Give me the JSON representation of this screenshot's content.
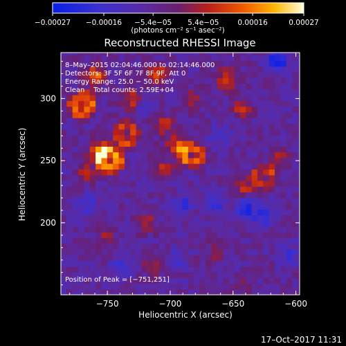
{
  "chart_data": {
    "type": "heatmap",
    "title": "Reconstructed RHESSI Image",
    "xlabel": "Heliocentric X (arcsec)",
    "ylabel": "Heliocentric Y (arcsec)",
    "xlim": [
      -787,
      -597
    ],
    "ylim": [
      142,
      337
    ],
    "x_ticks": [
      -750,
      -700,
      -650,
      -600
    ],
    "x_tick_labels": [
      "−750",
      "−700",
      "−650",
      "−600"
    ],
    "y_ticks": [
      200,
      250,
      300
    ],
    "y_tick_labels": [
      "200",
      "250",
      "300"
    ],
    "colorbar": {
      "tick_values": [
        -0.00027,
        -0.00016,
        -5.4e-05,
        5.4e-05,
        0.00016,
        0.00027
      ],
      "tick_labels": [
        "−0.00027",
        "−0.00016",
        "−5.4e−05",
        "5.4e−05",
        "0.00016",
        "0.00027"
      ],
      "unit_label": "(photons cm⁻² s⁻¹ asec⁻²)",
      "range": [
        -0.00027,
        0.00027
      ]
    },
    "annotations": {
      "time": "8–May–2015 02:04:46.000 to 02:14:46.000",
      "detectors": "Detectors: 3F 5F 6F 7F 8F 9F, Att 0",
      "energy": "Energy Range: 25.0 − 50.0 keV",
      "clean": "Clean    Total counts: 2.59E+04",
      "peak": "Position of Peak = [−751,251]"
    },
    "bright_sources": [
      {
        "x": -770,
        "y": 295,
        "value": 0.00024
      },
      {
        "x": -760,
        "y": 318,
        "value": 0.0002
      },
      {
        "x": -748,
        "y": 251,
        "value": 0.00027
      },
      {
        "x": -757,
        "y": 258,
        "value": 0.00022
      },
      {
        "x": -735,
        "y": 272,
        "value": 0.00018
      },
      {
        "x": -730,
        "y": 300,
        "value": 0.00016
      },
      {
        "x": -710,
        "y": 320,
        "value": 0.00017
      },
      {
        "x": -705,
        "y": 280,
        "value": 0.00012
      },
      {
        "x": -683,
        "y": 255,
        "value": 0.0002
      },
      {
        "x": -695,
        "y": 262,
        "value": 0.00016
      },
      {
        "x": -705,
        "y": 243,
        "value": 0.00011
      },
      {
        "x": -655,
        "y": 316,
        "value": 0.00015
      },
      {
        "x": -643,
        "y": 292,
        "value": 0.00012
      },
      {
        "x": -625,
        "y": 237,
        "value": 0.00016
      },
      {
        "x": -640,
        "y": 228,
        "value": 0.00012
      },
      {
        "x": -612,
        "y": 255,
        "value": 0.0001
      },
      {
        "x": -720,
        "y": 200,
        "value": 0.00011
      },
      {
        "x": -752,
        "y": 187,
        "value": 0.0001
      },
      {
        "x": -713,
        "y": 165,
        "value": 9e-05
      },
      {
        "x": -665,
        "y": 176,
        "value": 6e-05
      },
      {
        "x": -640,
        "y": 150,
        "value": 5e-05
      },
      {
        "x": -767,
        "y": 240,
        "value": 0.0001
      },
      {
        "x": -684,
        "y": 300,
        "value": 0.0001
      }
    ],
    "dark_sources": [
      {
        "x": -615,
        "y": 330,
        "value": -0.0002
      },
      {
        "x": -625,
        "y": 205,
        "value": -0.00014
      },
      {
        "x": -640,
        "y": 212,
        "value": -0.00016
      },
      {
        "x": -665,
        "y": 215,
        "value": -0.00014
      },
      {
        "x": -690,
        "y": 215,
        "value": -0.00012
      },
      {
        "x": -765,
        "y": 215,
        "value": -0.00012
      },
      {
        "x": -720,
        "y": 295,
        "value": -0.0001
      },
      {
        "x": -660,
        "y": 270,
        "value": -0.0001
      },
      {
        "x": -740,
        "y": 165,
        "value": -0.0001
      },
      {
        "x": -605,
        "y": 175,
        "value": -0.0001
      },
      {
        "x": -695,
        "y": 170,
        "value": -8e-05
      }
    ]
  },
  "footer": {
    "timestamp": "17–Oct–2017 11:31"
  }
}
